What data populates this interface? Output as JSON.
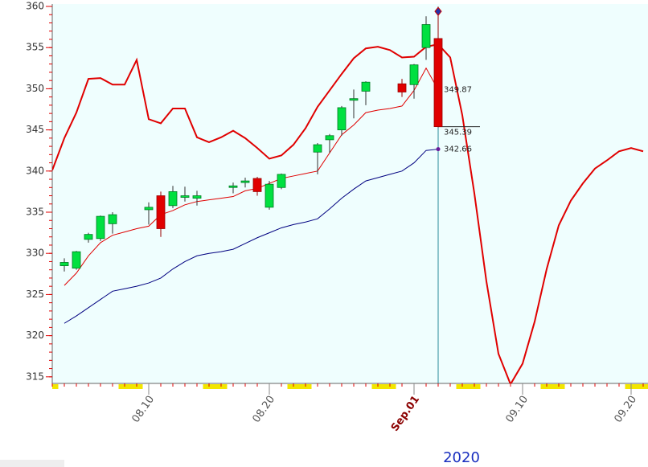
{
  "chart_data": {
    "type": "candlestick",
    "xlabel": "2020",
    "categories": [
      null,
      null,
      null,
      null,
      null,
      null,
      null,
      null,
      "08.10",
      null,
      null,
      null,
      null,
      null,
      null,
      null,
      null,
      null,
      "08.20",
      null,
      null,
      null,
      null,
      null,
      null,
      null,
      null,
      null,
      null,
      null,
      "Sep.01",
      null,
      null,
      null,
      null,
      null,
      null,
      null,
      null,
      "09.10",
      null,
      null,
      null,
      null,
      null,
      null,
      null,
      null,
      "09.20",
      null
    ],
    "ylim": [
      314.2,
      360
    ],
    "yticks": [
      315,
      320,
      325,
      330,
      335,
      340,
      345,
      350,
      355,
      360
    ],
    "candles": {
      "up_color": "#00e040",
      "down_color": "#e00000",
      "open": [
        null,
        328.5,
        328.2,
        331.7,
        331.8,
        333.6,
        null,
        null,
        335.3,
        337.0,
        335.8,
        336.9,
        336.7,
        null,
        null,
        338.1,
        338.7,
        339.1,
        335.6,
        338.0,
        null,
        null,
        342.3,
        343.8,
        345.0,
        348.6,
        349.7,
        null,
        null,
        350.6,
        350.5,
        355.0,
        356.1,
        null,
        null,
        null,
        null,
        null,
        null,
        null,
        null,
        null,
        null,
        null,
        null,
        null,
        null,
        null,
        null,
        null
      ],
      "high": [
        null,
        329.4,
        330.3,
        332.5,
        334.6,
        335.0,
        null,
        null,
        336.2,
        337.5,
        338.2,
        338.1,
        337.6,
        null,
        null,
        338.6,
        339.2,
        339.3,
        338.8,
        339.7,
        null,
        null,
        343.4,
        344.5,
        347.9,
        349.9,
        350.9,
        null,
        null,
        351.2,
        353.0,
        358.8,
        359.4,
        null,
        null,
        null,
        null,
        null,
        null,
        null,
        null,
        null,
        null,
        null,
        null,
        null,
        null,
        null,
        null,
        null
      ],
      "low": [
        null,
        327.8,
        328.0,
        331.3,
        331.5,
        332.4,
        null,
        null,
        333.5,
        332.0,
        335.5,
        336.3,
        335.8,
        null,
        null,
        337.3,
        338.0,
        337.0,
        335.3,
        337.8,
        null,
        null,
        339.6,
        342.2,
        344.3,
        346.4,
        348.0,
        null,
        null,
        349.0,
        348.8,
        353.5,
        345.3,
        null,
        null,
        null,
        null,
        null,
        null,
        null,
        null,
        null,
        null,
        null,
        null,
        null,
        null,
        null,
        null,
        null
      ],
      "close": [
        null,
        328.9,
        330.2,
        332.3,
        334.5,
        334.7,
        null,
        null,
        335.6,
        333.0,
        337.5,
        337.0,
        337.0,
        null,
        null,
        338.2,
        338.8,
        337.5,
        338.4,
        339.6,
        null,
        null,
        343.2,
        344.3,
        347.7,
        348.8,
        350.8,
        null,
        null,
        349.6,
        352.9,
        357.8,
        345.39,
        null,
        null,
        null,
        null,
        null,
        null,
        null,
        null,
        null,
        null,
        null,
        null,
        null,
        null,
        null,
        null,
        null
      ]
    },
    "series": [
      {
        "color": "#e00000",
        "width": 2,
        "values": [
          340.1,
          344.0,
          347.1,
          351.2,
          351.3,
          350.5,
          350.5,
          353.5,
          346.3,
          345.8,
          347.6,
          347.6,
          344.1,
          343.5,
          344.1,
          344.9,
          344.0,
          342.8,
          341.5,
          341.9,
          343.2,
          345.2,
          347.8,
          349.8,
          351.8,
          353.7,
          354.9,
          355.1,
          354.7,
          353.8,
          353.9,
          355.1,
          355.4,
          353.8,
          346.8,
          337.3,
          326.6,
          317.8,
          314.1,
          316.6,
          321.7,
          328.1,
          333.4,
          336.4,
          338.5,
          340.3,
          341.3,
          342.4,
          342.8,
          342.4
        ]
      },
      {
        "color": "#e00000",
        "width": 1,
        "values": [
          null,
          326.1,
          327.6,
          329.7,
          331.3,
          332.2,
          332.6,
          333.0,
          333.3,
          334.7,
          335.2,
          335.9,
          336.3,
          336.5,
          336.7,
          336.9,
          337.6,
          337.9,
          338.5,
          339.1,
          339.4,
          339.7,
          340.0,
          342.2,
          344.4,
          345.6,
          347.1,
          347.4,
          347.6,
          347.9,
          349.8,
          352.5,
          349.87,
          null,
          null,
          null,
          null,
          null,
          null,
          null,
          null,
          null,
          null,
          null,
          null,
          null,
          null,
          null,
          null,
          null
        ]
      },
      {
        "color": "#000080",
        "width": 1,
        "values": [
          null,
          321.5,
          322.4,
          323.4,
          324.4,
          325.4,
          325.7,
          326.0,
          326.4,
          327.0,
          328.1,
          329.0,
          329.7,
          330.0,
          330.2,
          330.5,
          331.2,
          331.9,
          332.5,
          333.1,
          333.5,
          333.8,
          334.2,
          335.4,
          336.7,
          337.8,
          338.8,
          339.2,
          339.6,
          340.0,
          341.0,
          342.5,
          342.66,
          null,
          null,
          null,
          null,
          null,
          null,
          null,
          null,
          null,
          null,
          null,
          null,
          null,
          null,
          null,
          null,
          null
        ]
      }
    ],
    "annotations": [
      {
        "value": 349.87,
        "label": "349.87"
      },
      {
        "value": 345.39,
        "label": "345.39"
      },
      {
        "value": 342.66,
        "label": "342.66"
      }
    ]
  }
}
